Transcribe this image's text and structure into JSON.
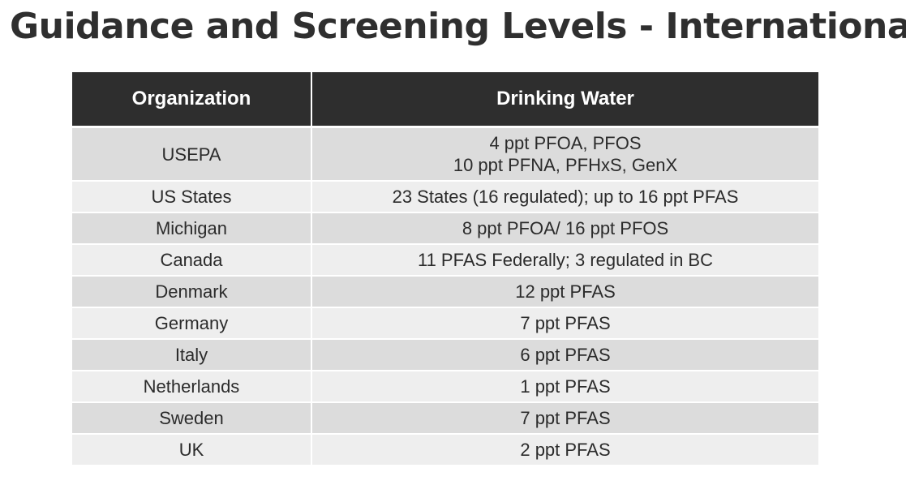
{
  "title": "Guidance and Screening Levels - International",
  "table": {
    "headers": [
      "Organization",
      "Drinking Water"
    ],
    "rows": [
      {
        "organization": "USEPA",
        "drinking_water": [
          "4 ppt PFOA, PFOS",
          "10 ppt PFNA, PFHxS, GenX"
        ]
      },
      {
        "organization": "US States",
        "drinking_water": [
          "23 States (16 regulated); up to 16 ppt PFAS"
        ]
      },
      {
        "organization": "Michigan",
        "drinking_water": [
          "8 ppt PFOA/ 16 ppt PFOS"
        ]
      },
      {
        "organization": "Canada",
        "drinking_water": [
          "11 PFAS Federally; 3 regulated in BC"
        ]
      },
      {
        "organization": "Denmark",
        "drinking_water": [
          "12 ppt PFAS"
        ]
      },
      {
        "organization": "Germany",
        "drinking_water": [
          "7 ppt PFAS"
        ]
      },
      {
        "organization": "Italy",
        "drinking_water": [
          "6 ppt PFAS"
        ]
      },
      {
        "organization": "Netherlands",
        "drinking_water": [
          "1 ppt PFAS"
        ]
      },
      {
        "organization": "Sweden",
        "drinking_water": [
          "7 ppt PFAS"
        ]
      },
      {
        "organization": "UK",
        "drinking_water": [
          "2 ppt PFAS"
        ]
      }
    ]
  },
  "colors": {
    "header_bg": "#2e2e2e",
    "header_text": "#ffffff",
    "row_dark": "#dcdcdc",
    "row_light": "#eeeeee",
    "text": "#2b2b2b"
  }
}
